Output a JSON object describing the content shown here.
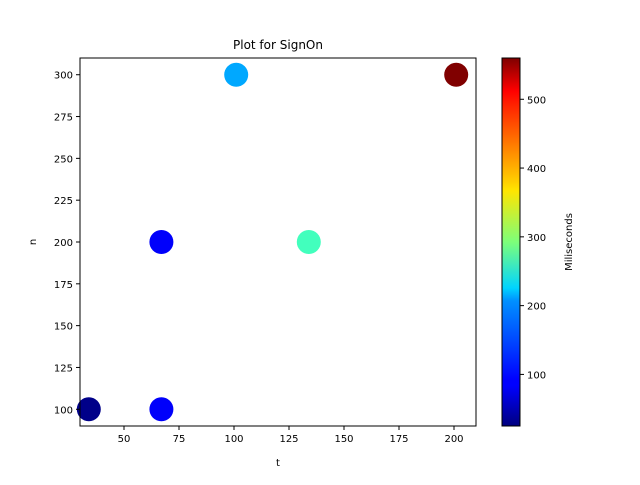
{
  "chart_data": {
    "type": "scatter",
    "title": "Plot for SignOn",
    "xlabel": "t",
    "ylabel": "n",
    "xlim": [
      30,
      210
    ],
    "ylim": [
      90,
      310
    ],
    "xticks": [
      50,
      75,
      100,
      125,
      150,
      175,
      200
    ],
    "yticks": [
      100,
      125,
      150,
      175,
      200,
      225,
      250,
      275,
      300
    ],
    "grid": false,
    "colorbar": {
      "label": "Miliseconds",
      "colormap": "jet",
      "range": [
        25,
        560
      ],
      "ticks": [
        100,
        200,
        300,
        400,
        500
      ]
    },
    "points": [
      {
        "x": 34,
        "y": 100,
        "value": 30
      },
      {
        "x": 67,
        "y": 100,
        "value": 90
      },
      {
        "x": 67,
        "y": 200,
        "value": 90
      },
      {
        "x": 101,
        "y": 300,
        "value": 180
      },
      {
        "x": 134,
        "y": 200,
        "value": 260
      },
      {
        "x": 201,
        "y": 300,
        "value": 560
      }
    ]
  }
}
